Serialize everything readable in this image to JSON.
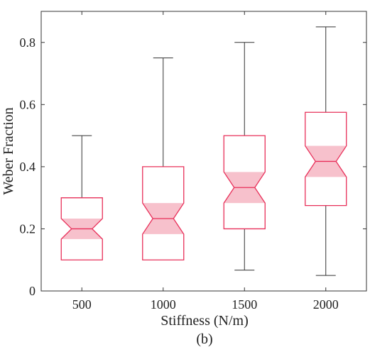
{
  "chart_data": {
    "type": "boxplot",
    "notched": true,
    "title": "",
    "xlabel": "Stiffness (N/m)",
    "ylabel": "Weber Fraction",
    "caption": "(b)",
    "categories": [
      "500",
      "1000",
      "1500",
      "2000"
    ],
    "ylim": [
      0,
      0.9
    ],
    "yticks": [
      0,
      0.2,
      0.4,
      0.6,
      0.8
    ],
    "ytick_labels": [
      "0",
      "0.2",
      "0.4",
      "0.6",
      "0.8"
    ],
    "grid": false,
    "boxes": [
      {
        "category": "500",
        "whisker_low": 0.1,
        "q1": 0.1,
        "notch_low": 0.167,
        "median": 0.2,
        "notch_high": 0.233,
        "q3": 0.3,
        "whisker_high": 0.5
      },
      {
        "category": "1000",
        "whisker_low": 0.1,
        "q1": 0.1,
        "notch_low": 0.183,
        "median": 0.233,
        "notch_high": 0.283,
        "q3": 0.4,
        "whisker_high": 0.75
      },
      {
        "category": "1500",
        "whisker_low": 0.067,
        "q1": 0.2,
        "notch_low": 0.283,
        "median": 0.333,
        "notch_high": 0.383,
        "q3": 0.5,
        "whisker_high": 0.8
      },
      {
        "category": "2000",
        "whisker_low": 0.05,
        "q1": 0.275,
        "notch_low": 0.367,
        "median": 0.417,
        "notch_high": 0.467,
        "q3": 0.575,
        "whisker_high": 0.85
      }
    ],
    "colors": {
      "box_edge": "#e8305a",
      "notch_fill": "#f7c1cc",
      "whisker": "#333333",
      "axis": "#333333"
    }
  }
}
